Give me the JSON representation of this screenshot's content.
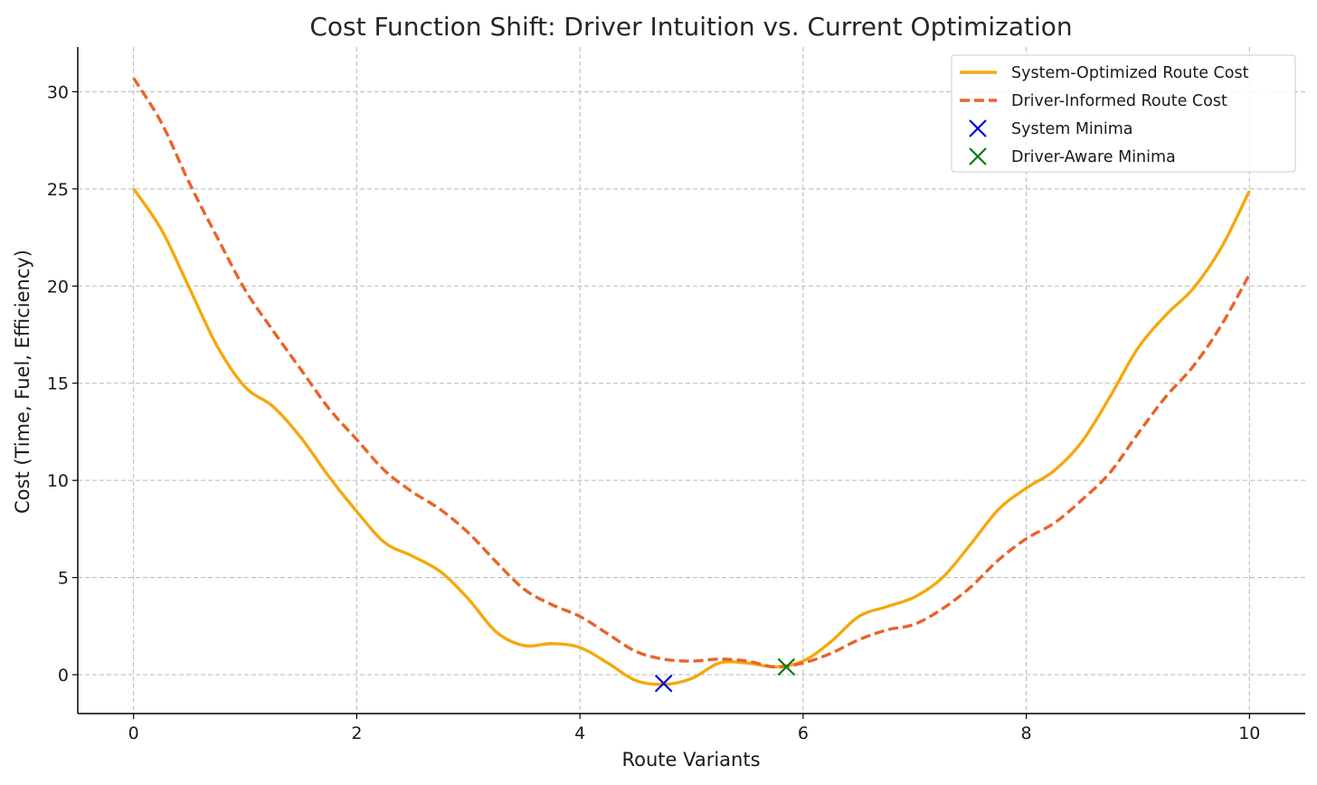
{
  "chart_data": {
    "type": "line",
    "title": "Cost Function Shift: Driver Intuition vs. Current Optimization",
    "xlabel": "Route Variants",
    "ylabel": "Cost (Time, Fuel, Efficiency)",
    "xlim": [
      -0.5,
      10.5
    ],
    "ylim": [
      -2,
      32.3
    ],
    "xticks": [
      0,
      2,
      4,
      6,
      8,
      10
    ],
    "yticks": [
      0,
      5,
      10,
      15,
      20,
      25,
      30
    ],
    "grid": true,
    "legend_position": "top-right",
    "series": [
      {
        "name": "System-Optimized Route Cost",
        "style": "solid",
        "color": "#f5a80d",
        "x": [
          0,
          0.25,
          0.5,
          0.75,
          1,
          1.25,
          1.5,
          1.75,
          2,
          2.25,
          2.5,
          2.75,
          3,
          3.25,
          3.5,
          3.75,
          4,
          4.25,
          4.5,
          4.75,
          5,
          5.25,
          5.5,
          5.75,
          6,
          6.25,
          6.5,
          6.75,
          7,
          7.25,
          7.5,
          7.75,
          8,
          8.25,
          8.5,
          8.75,
          9,
          9.25,
          9.5,
          9.75,
          10
        ],
        "y": [
          25,
          22.9,
          19.9,
          16.9,
          14.8,
          13.8,
          12.2,
          10.2,
          8.4,
          6.8,
          6.1,
          5.3,
          3.9,
          2.2,
          1.5,
          1.6,
          1.4,
          0.6,
          -0.3,
          -0.5,
          -0.2,
          0.6,
          0.6,
          0.4,
          0.7,
          1.7,
          3,
          3.5,
          4,
          5,
          6.7,
          8.5,
          9.6,
          10.5,
          12,
          14.3,
          16.8,
          18.5,
          19.9,
          22,
          24.9
        ]
      },
      {
        "name": "Driver-Informed Route Cost",
        "style": "dashed",
        "color": "#e8642a",
        "x": [
          0,
          0.25,
          0.5,
          0.75,
          1,
          1.25,
          1.5,
          1.75,
          2,
          2.25,
          2.5,
          2.75,
          3,
          3.25,
          3.5,
          3.75,
          4,
          4.25,
          4.5,
          4.75,
          5,
          5.25,
          5.5,
          5.75,
          6,
          6.25,
          6.5,
          6.75,
          7,
          7.25,
          7.5,
          7.75,
          8,
          8.25,
          8.5,
          8.75,
          9,
          9.25,
          9.5,
          9.75,
          10
        ],
        "y": [
          30.7,
          28.4,
          25.3,
          22.5,
          19.8,
          17.7,
          15.7,
          13.7,
          12.1,
          10.5,
          9.4,
          8.5,
          7.3,
          5.8,
          4.4,
          3.6,
          3,
          2.1,
          1.2,
          0.8,
          0.7,
          0.8,
          0.7,
          0.4,
          0.6,
          1.1,
          1.8,
          2.3,
          2.6,
          3.4,
          4.5,
          5.9,
          7,
          7.8,
          9,
          10.4,
          12.4,
          14.3,
          15.9,
          18,
          20.6
        ]
      }
    ],
    "markers": [
      {
        "name": "System Minima",
        "color": "#0000e0",
        "points": [
          [
            4.75,
            -0.45
          ]
        ]
      },
      {
        "name": "Driver-Aware Minima",
        "color": "#0a7a10",
        "points": [
          [
            5.85,
            0.4
          ]
        ]
      }
    ]
  }
}
